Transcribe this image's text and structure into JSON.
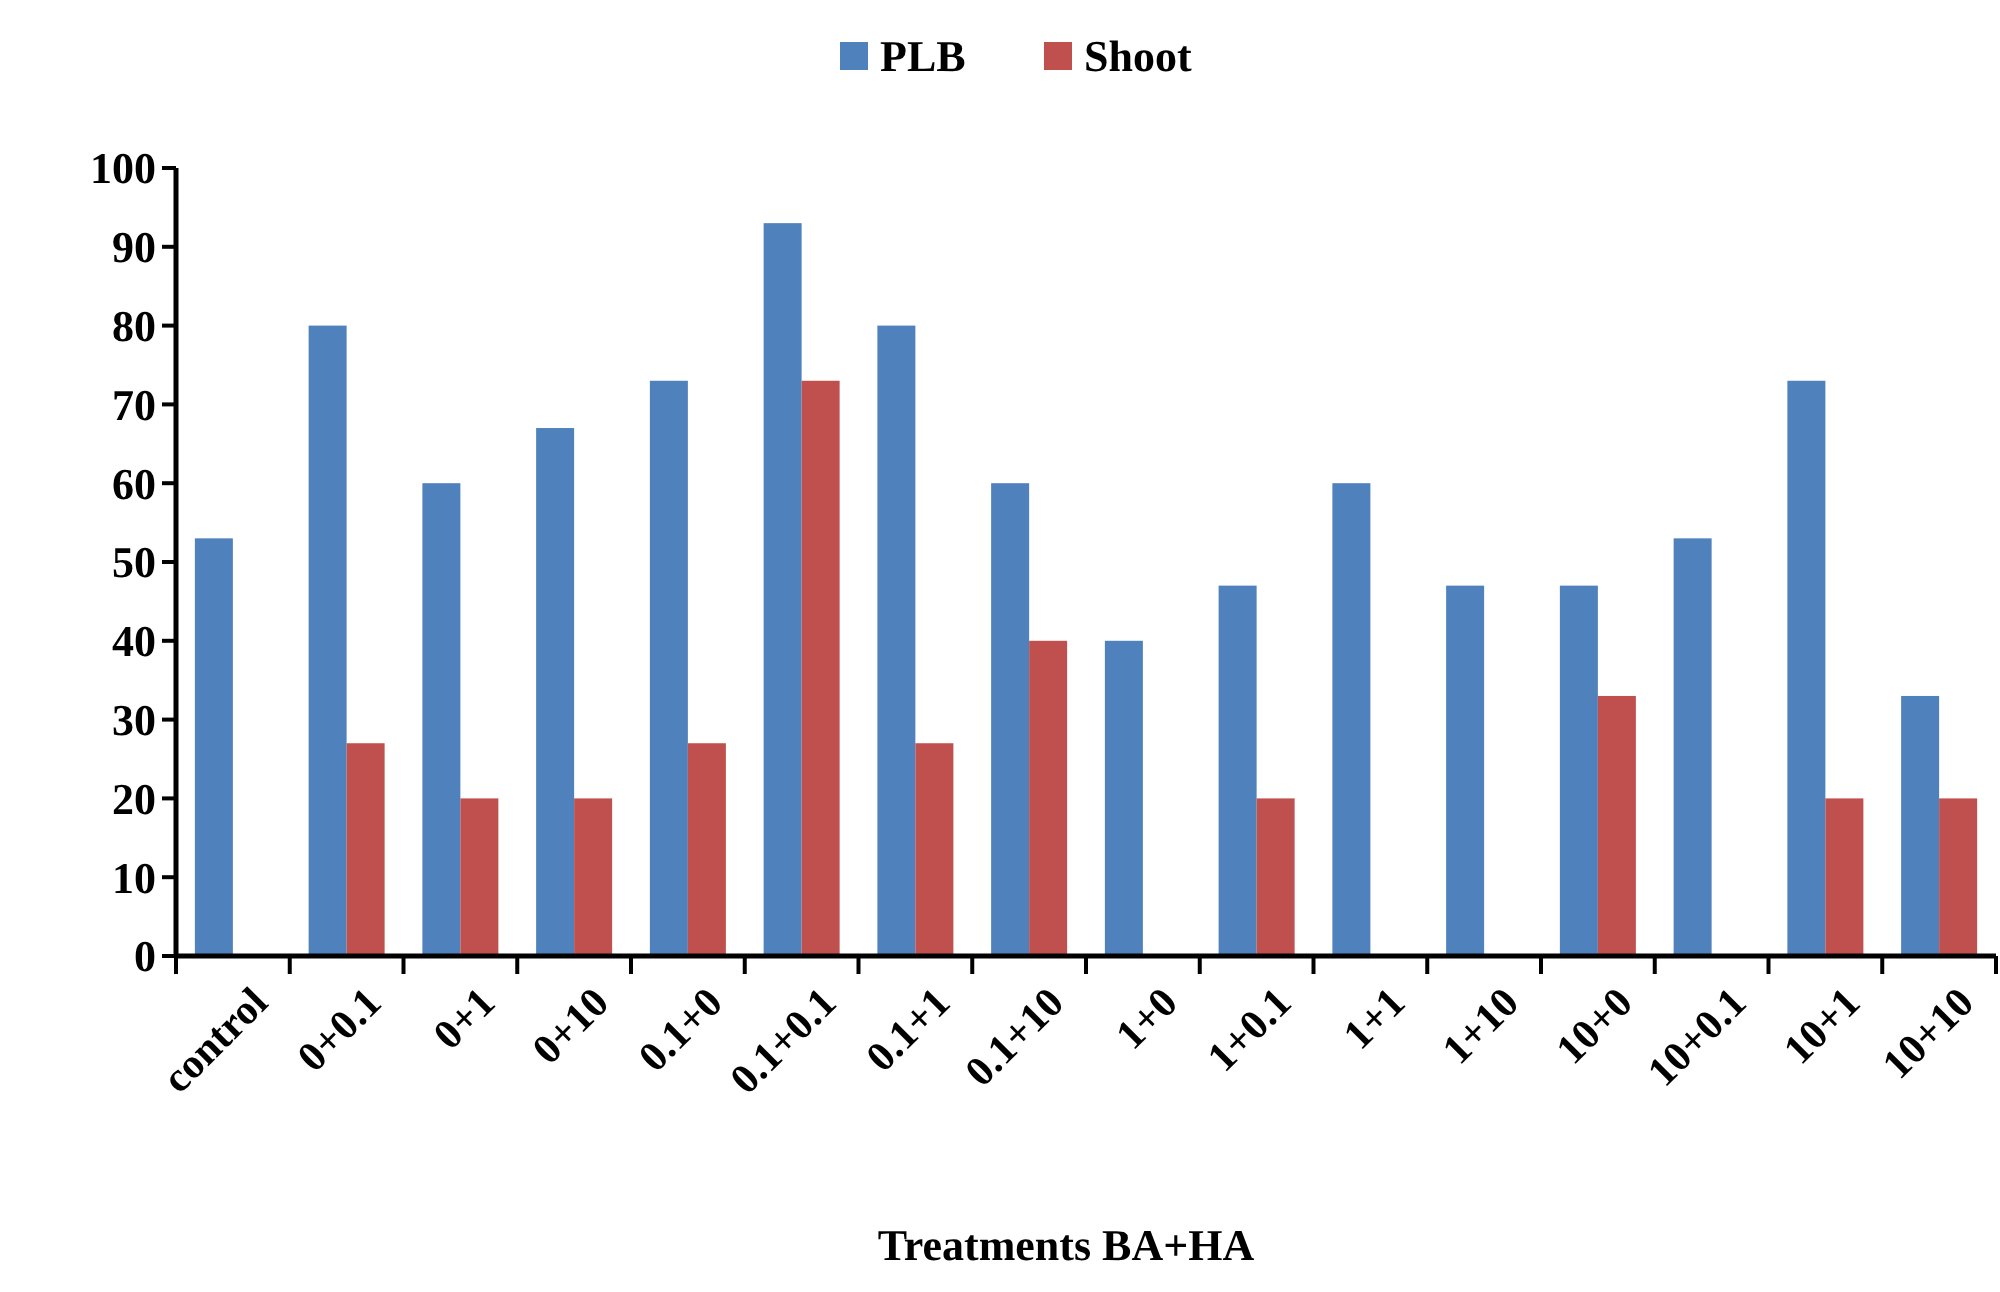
{
  "chart_data": {
    "type": "bar",
    "xlabel": "Treatments BA+HA",
    "categories": [
      "control",
      "0+0.1",
      "0+1",
      "0+10",
      "0.1+0",
      "0.1+0.1",
      "0.1+1",
      "0.1+10",
      "1+0",
      "1+0.1",
      "1+1",
      "1+10",
      "10+0",
      "10+0.1",
      "10+1",
      "10+10"
    ],
    "series": [
      {
        "name": "PLB",
        "color": "#4f81bd",
        "values": [
          53,
          80,
          60,
          67,
          73,
          93,
          80,
          60,
          40,
          47,
          60,
          47,
          47,
          53,
          73,
          33
        ]
      },
      {
        "name": "Shoot",
        "color": "#c0504d",
        "values": [
          0,
          27,
          20,
          20,
          27,
          73,
          27,
          40,
          0,
          20,
          0,
          0,
          33,
          0,
          20,
          20
        ]
      }
    ],
    "ylim": [
      0,
      100
    ],
    "yticks": [
      0,
      10,
      20,
      30,
      40,
      50,
      60,
      70,
      80,
      90,
      100
    ],
    "grid": false,
    "legend": "top"
  }
}
